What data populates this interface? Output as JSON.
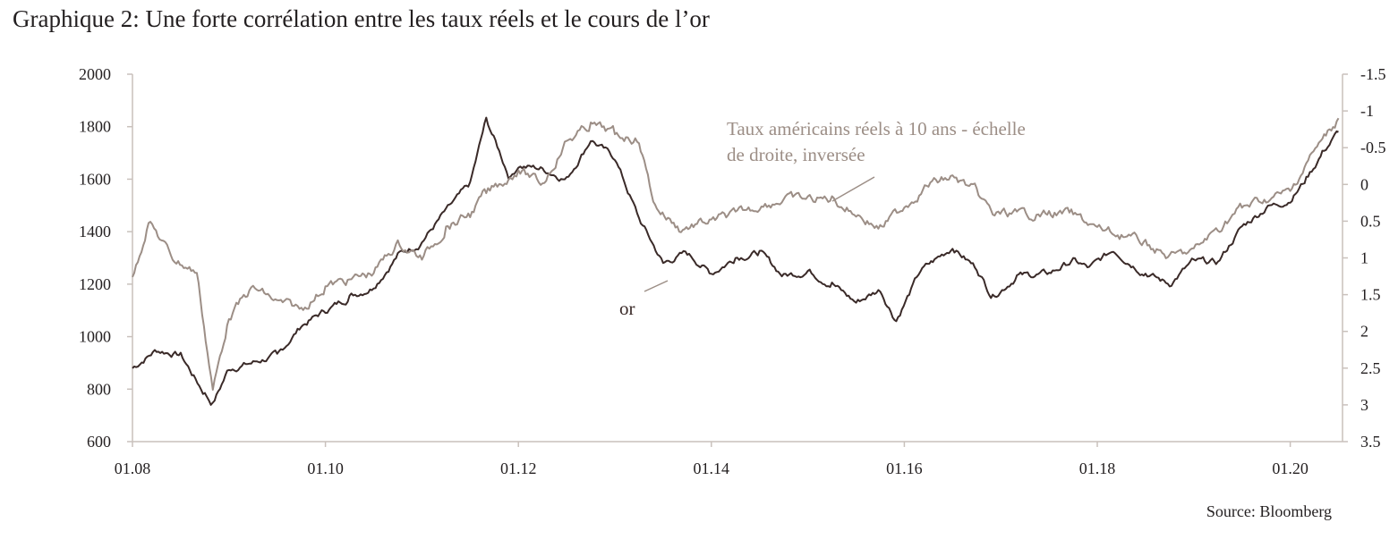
{
  "title": "Graphique 2: Une forte corrélation entre les taux réels et le cours de l’or",
  "source": "Source: Bloomberg",
  "colors": {
    "gold": "#3a2a28",
    "rates": "#9c8e86",
    "axis": "#c9c1bc",
    "text": "#231f20"
  },
  "chart_data": {
    "type": "line",
    "x_tick_labels": [
      "01.08",
      "01.10",
      "01.12",
      "01.14",
      "01.16",
      "01.18",
      "01.20"
    ],
    "y_left": {
      "ylim": [
        600,
        2000
      ],
      "ticks": [
        "2000",
        "1800",
        "1600",
        "1400",
        "1200",
        "1000",
        "800",
        "600"
      ]
    },
    "y_right": {
      "ylim": [
        3.5,
        -1.5
      ],
      "inverted": true,
      "ticks": [
        "-1.5",
        "-1",
        "-0.5",
        "0",
        "0.5",
        "1",
        "1.5",
        "2",
        "2.5",
        "3",
        "3.5"
      ]
    },
    "annotations": {
      "gold": "or",
      "rates_line1": "Taux américains réels à 10 ans - échelle",
      "rates_line2": "de droite, inversée"
    },
    "series": [
      {
        "name": "or",
        "axis": "left",
        "x": [
          "2008-01",
          "2008-04",
          "2008-07",
          "2008-10",
          "2008-11",
          "2009-01",
          "2009-04",
          "2009-07",
          "2009-10",
          "2010-01",
          "2010-04",
          "2010-07",
          "2010-10",
          "2011-01",
          "2011-04",
          "2011-07",
          "2011-09",
          "2011-12",
          "2012-01",
          "2012-04",
          "2012-07",
          "2012-10",
          "2013-01",
          "2013-04",
          "2013-07",
          "2013-10",
          "2014-01",
          "2014-04",
          "2014-07",
          "2014-10",
          "2015-01",
          "2015-04",
          "2015-07",
          "2015-10",
          "2015-12",
          "2016-03",
          "2016-07",
          "2016-10",
          "2016-12",
          "2017-03",
          "2017-07",
          "2017-10",
          "2017-12",
          "2018-03",
          "2018-07",
          "2018-10",
          "2019-01",
          "2019-04",
          "2019-07",
          "2019-10",
          "2020-01",
          "2020-03",
          "2020-05",
          "2020-07"
        ],
        "values": [
          880,
          950,
          930,
          780,
          740,
          880,
          900,
          930,
          1040,
          1100,
          1150,
          1190,
          1310,
          1360,
          1480,
          1580,
          1830,
          1600,
          1650,
          1640,
          1600,
          1750,
          1680,
          1450,
          1280,
          1320,
          1240,
          1300,
          1320,
          1230,
          1250,
          1200,
          1130,
          1180,
          1060,
          1250,
          1340,
          1260,
          1150,
          1230,
          1240,
          1290,
          1260,
          1330,
          1240,
          1200,
          1290,
          1280,
          1420,
          1490,
          1520,
          1600,
          1700,
          1780
        ]
      },
      {
        "name": "Taux américains réels à 10 ans",
        "axis": "right",
        "x": [
          "2008-01",
          "2008-03",
          "2008-06",
          "2008-09",
          "2008-11",
          "2009-01",
          "2009-04",
          "2009-07",
          "2009-10",
          "2010-01",
          "2010-04",
          "2010-07",
          "2010-10",
          "2011-01",
          "2011-04",
          "2011-07",
          "2011-09",
          "2011-12",
          "2012-01",
          "2012-04",
          "2012-07",
          "2012-10",
          "2013-01",
          "2013-04",
          "2013-06",
          "2013-09",
          "2014-01",
          "2014-04",
          "2014-07",
          "2014-10",
          "2015-01",
          "2015-04",
          "2015-07",
          "2015-10",
          "2016-01",
          "2016-04",
          "2016-07",
          "2016-10",
          "2016-12",
          "2017-03",
          "2017-07",
          "2017-10",
          "2018-01",
          "2018-04",
          "2018-07",
          "2018-10",
          "2019-01",
          "2019-04",
          "2019-07",
          "2019-10",
          "2020-01",
          "2020-03",
          "2020-05",
          "2020-07"
        ],
        "values": [
          1.3,
          0.5,
          1.0,
          1.2,
          2.8,
          1.8,
          1.4,
          1.6,
          1.7,
          1.4,
          1.3,
          1.2,
          0.8,
          1.0,
          0.6,
          0.4,
          0.1,
          -0.1,
          -0.2,
          0.0,
          -0.6,
          -0.8,
          -0.7,
          -0.6,
          0.3,
          0.6,
          0.5,
          0.4,
          0.3,
          0.2,
          0.2,
          0.2,
          0.4,
          0.6,
          0.3,
          0.0,
          -0.1,
          0.1,
          0.4,
          0.4,
          0.4,
          0.4,
          0.6,
          0.7,
          0.8,
          1.0,
          0.9,
          0.6,
          0.3,
          0.2,
          0.1,
          -0.3,
          -0.6,
          -0.9
        ]
      }
    ]
  }
}
